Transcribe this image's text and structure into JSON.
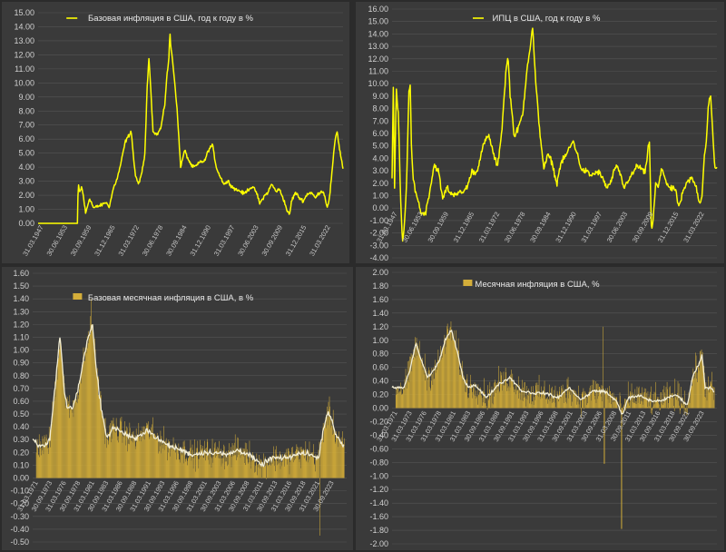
{
  "chart_data": [
    {
      "type": "line",
      "legend": "Базовая инфляция в США, год к году в %",
      "legend_position": "top-center",
      "color": "#ffff00",
      "ylim": [
        -0.5,
        15
      ],
      "y_ticks": [
        "15.00",
        "14.00",
        "13.00",
        "12.00",
        "11.00",
        "10.00",
        "9.00",
        "8.00",
        "7.00",
        "6.00",
        "5.00",
        "4.00",
        "3.00",
        "2.00",
        "1.00",
        "0.00"
      ],
      "x_ticks": [
        "31.03.1947",
        "30.06.1953",
        "30.09.1959",
        "31.12.1965",
        "31.03.1972",
        "30.06.1978",
        "30.09.1984",
        "31.12.1990",
        "31.03.1997",
        "30.06.2003",
        "30.09.2009",
        "31.12.2015",
        "31.03.2022"
      ],
      "x_range": [
        1947,
        2024
      ],
      "grid": true,
      "series": [
        {
          "x": [
            1947,
            1957.0,
            1957.1,
            1957.5,
            1958,
            1958.5,
            1959,
            1960,
            1961,
            1962,
            1963,
            1964,
            1965,
            1966,
            1967,
            1968,
            1969,
            1970,
            1970.5,
            1971,
            1971.5,
            1972,
            1972.5,
            1973,
            1974,
            1974.5,
            1975,
            1976,
            1977,
            1978,
            1978.5,
            1979,
            1979.5,
            1980,
            1980.3,
            1980.5,
            1981,
            1981.5,
            1982,
            1983,
            1984,
            1985,
            1986,
            1987,
            1988,
            1989,
            1990,
            1991,
            1992,
            1993,
            1994,
            1995,
            1996,
            1997,
            1998,
            1999,
            2000,
            2001,
            2002,
            2003,
            2004,
            2005,
            2006,
            2007,
            2008,
            2009,
            2010,
            2010.5,
            2011,
            2012,
            2013,
            2014,
            2015,
            2016,
            2017,
            2018,
            2019,
            2020,
            2020.5,
            2021,
            2021.5,
            2022,
            2022.5,
            2023,
            2023.5,
            2024
          ],
          "y": [
            0,
            0,
            2.8,
            2.2,
            2.6,
            1.8,
            0.7,
            1.8,
            1.1,
            1.2,
            1.3,
            1.5,
            1.2,
            2.5,
            3.2,
            4.4,
            5.8,
            6.3,
            6.6,
            5.0,
            3.5,
            3.0,
            2.9,
            3.3,
            5.0,
            9.5,
            11.9,
            6.6,
            6.3,
            6.8,
            7.6,
            8.5,
            10.5,
            11.6,
            13.6,
            12.6,
            11.5,
            10.0,
            8.5,
            4.0,
            5.2,
            4.5,
            4.0,
            4.1,
            4.4,
            4.4,
            5.2,
            5.6,
            4.0,
            3.3,
            2.8,
            3.0,
            2.6,
            2.4,
            2.3,
            2.1,
            2.4,
            2.6,
            2.3,
            1.4,
            1.9,
            2.2,
            2.8,
            2.3,
            2.4,
            1.7,
            0.8,
            0.6,
            1.6,
            2.2,
            1.8,
            1.6,
            2.1,
            2.2,
            1.8,
            2.2,
            2.3,
            1.2,
            1.6,
            3.0,
            4.5,
            6.0,
            6.6,
            5.5,
            4.7,
            3.9
          ]
        }
      ]
    },
    {
      "type": "line",
      "legend": "ИПЦ в США, год к году в %",
      "legend_position": "top-center",
      "color": "#ffff00",
      "ylim": [
        -4,
        16
      ],
      "y_ticks": [
        "16.00",
        "15.00",
        "14.00",
        "13.00",
        "12.00",
        "11.00",
        "10.00",
        "9.00",
        "8.00",
        "7.00",
        "6.00",
        "5.00",
        "4.00",
        "3.00",
        "2.00",
        "1.00",
        "0.00",
        "-1.00",
        "-2.00",
        "-3.00",
        "-4.00"
      ],
      "x_ticks": [
        "31.03.1947",
        "30.06.1953",
        "30.09.1959",
        "31.12.1965",
        "31.03.1972",
        "30.06.1978",
        "30.09.1984",
        "31.12.1990",
        "31.03.1997",
        "30.06.2003",
        "30.09.2009",
        "31.12.2015",
        "31.03.2022"
      ],
      "x_range": [
        1947,
        2024
      ],
      "grid": true,
      "series": [
        {
          "x": [
            1947,
            1947.3,
            1947.6,
            1948,
            1948.5,
            1949,
            1949.5,
            1950,
            1950.5,
            1951,
            1951.3,
            1951.6,
            1952,
            1953,
            1954,
            1955,
            1956,
            1957,
            1958,
            1959,
            1960,
            1961,
            1962,
            1963,
            1964,
            1965,
            1966,
            1967,
            1968,
            1969,
            1970,
            1971,
            1972,
            1973,
            1974,
            1974.5,
            1975,
            1976,
            1977,
            1978,
            1979,
            1980,
            1980.3,
            1981,
            1982,
            1983,
            1984,
            1985,
            1986,
            1987,
            1988,
            1989,
            1990,
            1991,
            1992,
            1993,
            1994,
            1995,
            1996,
            1997,
            1998,
            1999,
            2000,
            2001,
            2002,
            2003,
            2004,
            2005,
            2006,
            2007,
            2008,
            2008.5,
            2009,
            2009.5,
            2010,
            2011,
            2012,
            2013,
            2014,
            2015,
            2016,
            2017,
            2018,
            2019,
            2020,
            2020.5,
            2021,
            2021.5,
            2022,
            2022.5,
            2023,
            2023.5,
            2024
          ],
          "y": [
            2.5,
            9.7,
            1.5,
            9.5,
            7.5,
            1.0,
            -2.9,
            -1.0,
            2.5,
            9.5,
            9.6,
            5.0,
            2.3,
            0.8,
            -0.5,
            -0.3,
            1.5,
            3.5,
            3.0,
            0.7,
            1.7,
            1.1,
            1.2,
            1.2,
            1.3,
            1.9,
            3.0,
            2.8,
            4.2,
            5.4,
            5.8,
            4.4,
            3.3,
            6.2,
            11.0,
            12.2,
            9.1,
            5.7,
            6.5,
            7.6,
            11.3,
            13.5,
            14.7,
            10.3,
            6.2,
            3.2,
            4.3,
            3.6,
            1.9,
            3.6,
            4.1,
            4.8,
            5.4,
            4.2,
            3.0,
            3.0,
            2.6,
            2.8,
            2.9,
            2.3,
            1.6,
            2.2,
            3.4,
            2.8,
            1.6,
            2.3,
            2.7,
            3.4,
            3.2,
            2.8,
            5.6,
            -2.1,
            -0.4,
            2.0,
            1.6,
            3.2,
            2.1,
            1.5,
            1.6,
            0.1,
            1.3,
            2.1,
            2.4,
            1.8,
            0.3,
            1.2,
            4.2,
            5.4,
            8.5,
            9.0,
            6.0,
            3.2,
            3.2
          ]
        }
      ]
    },
    {
      "type": "bar",
      "legend": "Базовая месячная инфляция в США, в %",
      "legend_position": "top-center",
      "bar_color": "#d4ae3a",
      "line_color": "#f2edd4",
      "ylim": [
        -0.5,
        1.6
      ],
      "y_ticks": [
        "1.60",
        "1.50",
        "1.40",
        "1.30",
        "1.20",
        "1.10",
        "1.00",
        "0.90",
        "0.80",
        "0.70",
        "0.60",
        "0.50",
        "0.40",
        "0.30",
        "0.20",
        "0.10",
        "0.00",
        "-0.10",
        "-0.20",
        "-0.30",
        "-0.40",
        "-0.50"
      ],
      "x_ticks": [
        "31.03.1971",
        "30.09.1973",
        "31.03.1976",
        "30.09.1978",
        "31.03.1981",
        "30.09.1983",
        "31.03.1986",
        "30.09.1988",
        "31.03.1991",
        "30.09.1993",
        "31.03.1996",
        "30.09.1998",
        "31.03.2001",
        "30.09.2003",
        "31.03.2006",
        "30.09.2008",
        "31.03.2011",
        "30.09.2013",
        "31.03.2016",
        "30.09.2018",
        "31.03.2021",
        "30.09.2023"
      ],
      "x_range": [
        1970,
        2025
      ],
      "grid": true,
      "trend": {
        "x": [
          1970,
          1971,
          1972,
          1973,
          1974,
          1974.8,
          1975.5,
          1976,
          1977,
          1978,
          1979,
          1980,
          1980.5,
          1981,
          1982,
          1983,
          1984,
          1986,
          1988,
          1990,
          1992,
          1994,
          1996,
          1998,
          2000,
          2002,
          2004,
          2006,
          2008,
          2010,
          2012,
          2014,
          2016,
          2018,
          2020,
          2021,
          2021.7,
          2022,
          2023,
          2024,
          2024.5
        ],
        "y": [
          0.3,
          0.25,
          0.25,
          0.3,
          0.75,
          1.12,
          0.7,
          0.55,
          0.55,
          0.7,
          0.95,
          1.15,
          1.2,
          0.9,
          0.55,
          0.3,
          0.4,
          0.35,
          0.3,
          0.38,
          0.3,
          0.25,
          0.22,
          0.18,
          0.2,
          0.2,
          0.18,
          0.22,
          0.18,
          0.1,
          0.16,
          0.15,
          0.18,
          0.2,
          0.15,
          0.4,
          0.52,
          0.5,
          0.35,
          0.28,
          0.25
        ]
      }
    },
    {
      "type": "bar",
      "legend": "Месячная инфляция в США, %",
      "legend_position": "top-center",
      "bar_color": "#d4ae3a",
      "line_color": "#f2edd4",
      "ylim": [
        -2,
        2
      ],
      "y_ticks": [
        "2.00",
        "1.80",
        "1.60",
        "1.40",
        "1.20",
        "1.00",
        "0.80",
        "0.60",
        "0.40",
        "0.20",
        "0.00",
        "-0.20",
        "-0.40",
        "-0.60",
        "-0.80",
        "-1.00",
        "-1.20",
        "-1.40",
        "-1.60",
        "-1.80",
        "-2.00"
      ],
      "x_ticks": [
        "31.03.1971",
        "31.03.1973",
        "31.03.1976",
        "31.03.1978",
        "31.03.1981",
        "31.03.1983",
        "30.09.1986",
        "31.03.1988",
        "30.09.1991",
        "31.03.1993",
        "30.09.1996",
        "31.03.1998",
        "30.09.2001",
        "31.03.2003",
        "30.09.2006",
        "31.03.2008",
        "30.09.2011",
        "31.03.2013",
        "30.09.2016",
        "31.03.2018",
        "30.09.2021",
        "30.09.2023"
      ],
      "x_range": [
        1970,
        2025
      ],
      "grid": true,
      "trend": {
        "x": [
          1970,
          1972,
          1973,
          1974,
          1975,
          1976,
          1977,
          1978,
          1979,
          1980,
          1981,
          1982,
          1983,
          1984,
          1986,
          1988,
          1990,
          1992,
          1994,
          1996,
          1998,
          2000,
          2002,
          2004,
          2006,
          2008,
          2009,
          2010,
          2012,
          2014,
          2016,
          2018,
          2020,
          2021,
          2022,
          2022.5,
          2023,
          2024,
          2024.5
        ],
        "y": [
          0.3,
          0.3,
          0.55,
          0.95,
          0.7,
          0.45,
          0.55,
          0.7,
          1.0,
          1.15,
          0.85,
          0.45,
          0.3,
          0.35,
          0.15,
          0.35,
          0.45,
          0.25,
          0.22,
          0.22,
          0.15,
          0.3,
          0.12,
          0.25,
          0.25,
          0.1,
          -0.1,
          0.15,
          0.18,
          0.1,
          0.12,
          0.2,
          0.05,
          0.5,
          0.65,
          0.8,
          0.3,
          0.3,
          0.25
        ]
      }
    }
  ]
}
